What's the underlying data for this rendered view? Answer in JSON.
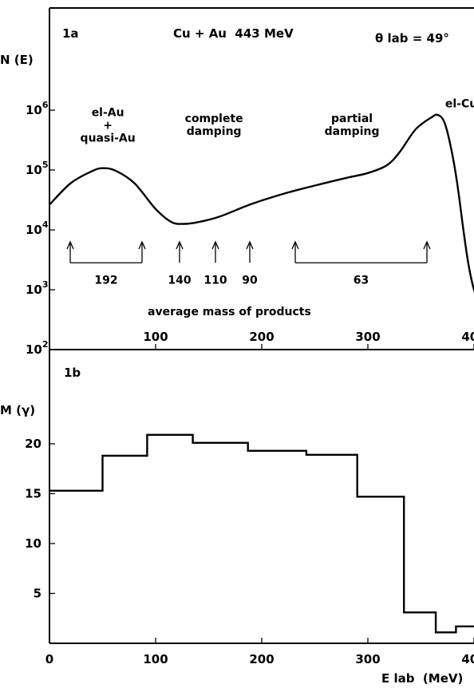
{
  "chart_data": [
    {
      "type": "line",
      "panel_label": "1a",
      "title": "Cu + Au  443 MeV",
      "angle_label": "θ lab = 49°",
      "ylabel": "N (E)",
      "yscale": "log",
      "xlim": [
        0,
        415
      ],
      "ylim_log10": [
        2,
        7
      ],
      "xticks": [
        "100",
        "200",
        "300",
        "400"
      ],
      "yticks": [
        {
          "base": "10",
          "exp": "2",
          "log": 2
        },
        {
          "base": "10",
          "exp": "3",
          "log": 3
        },
        {
          "base": "10",
          "exp": "4",
          "log": 4
        },
        {
          "base": "10",
          "exp": "5",
          "log": 5
        },
        {
          "base": "10",
          "exp": "6",
          "log": 6
        }
      ],
      "series": [
        {
          "x": [
            0,
            20,
            40,
            50,
            62,
            80,
            100,
            115,
            127,
            140,
            160,
            190,
            220,
            250,
            280,
            300,
            318,
            330,
            345,
            360,
            366,
            372,
            378,
            384,
            390,
            395,
            400,
            405
          ],
          "log10y": [
            4.42,
            4.78,
            4.98,
            5.03,
            4.99,
            4.78,
            4.35,
            4.13,
            4.1,
            4.13,
            4.22,
            4.43,
            4.6,
            4.74,
            4.87,
            4.95,
            5.08,
            5.3,
            5.68,
            5.88,
            5.92,
            5.8,
            5.4,
            4.8,
            4.0,
            3.4,
            3.0,
            2.78
          ]
        }
      ],
      "regions": [
        {
          "name": "el-Au\n+\nquasi-Au",
          "x": 55,
          "log10y": 5.9
        },
        {
          "name": "complete\ndamping",
          "x": 155,
          "log10y": 5.8
        },
        {
          "name": "partial\ndamping",
          "x": 285,
          "log10y": 5.8
        },
        {
          "name": "el-Cu",
          "x": 388,
          "log10y": 6.05
        }
      ],
      "arrows": {
        "tip_log10y": 3.8,
        "base_log10y": 3.45,
        "groups": [
          {
            "label": "192",
            "x_from": 25,
            "x_to": 115
          },
          {
            "label": "140",
            "x": 162
          },
          {
            "label": "110",
            "x": 207
          },
          {
            "label": "90",
            "x": 250
          },
          {
            "label": "63",
            "x_from": 307,
            "x_to": 472
          }
        ]
      },
      "arrow_x_note": "x in pixels-free data units of the original drawing",
      "footer": "average mass of products"
    },
    {
      "type": "bar",
      "panel_label": "1b",
      "ylabel": "M (γ)",
      "xlabel": "E lab  (MeV)",
      "xlim": [
        0,
        415
      ],
      "ylim": [
        0,
        25
      ],
      "xticks": [
        "0",
        "100",
        "200",
        "300",
        "400"
      ],
      "yticks": [
        "5",
        "10",
        "15",
        "20"
      ],
      "series": [
        {
          "edges": [
            0,
            50,
            92,
            135,
            187,
            242,
            290,
            334,
            364,
            383,
            415
          ],
          "values": [
            15.3,
            18.8,
            20.9,
            20.1,
            19.3,
            18.9,
            14.7,
            3.1,
            1.1,
            1.7
          ]
        }
      ]
    }
  ]
}
